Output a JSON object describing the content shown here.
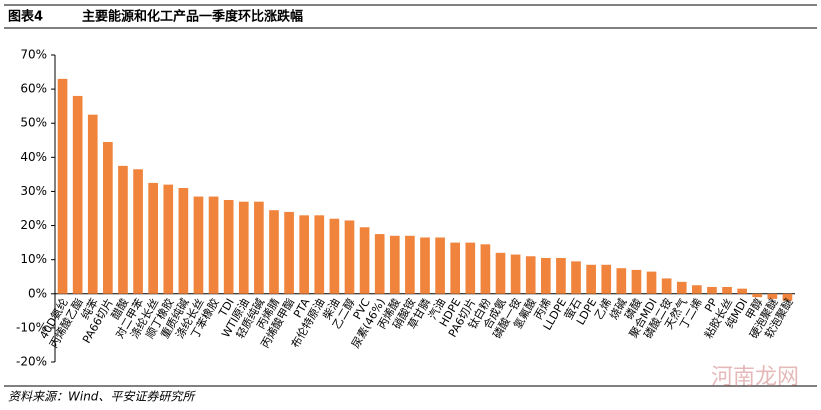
{
  "chart_data": {
    "type": "bar",
    "figure_label": "图表4",
    "title": "主要能源和化工产品一季度环比涨跌幅",
    "source": "资料来源：Wind、平安证券研究所",
    "watermark": "河南龙网",
    "color": "#f0843c",
    "categories": [
      "40D氨纶",
      "丙烯酸乙酯",
      "纯苯",
      "PA66切片",
      "醋酸",
      "对二甲苯",
      "涤纶长丝",
      "顺丁橡胶",
      "重质纯碱",
      "涤纶长丝",
      "丁苯橡胶",
      "TDI",
      "WTI原油",
      "轻质纯碱",
      "丙烯腈",
      "丙烯酸甲酯",
      "PTA",
      "布伦特原油",
      "柴油",
      "乙二醇",
      "PVC",
      "尿素(46%)",
      "丙烯酸",
      "硝酸铵",
      "草甘膦",
      "汽油",
      "HDPE",
      "PA6切片",
      "钛白粉",
      "合成氨",
      "磷酸一铵",
      "氢氟酸",
      "丙烯",
      "LLDPE",
      "萤石",
      "LDPE",
      "乙烯",
      "烧碱",
      "磷酸",
      "聚合MDI",
      "磷酸二铵",
      "天然气",
      "丁二烯",
      "PP",
      "粘胶长丝",
      "纯MDI",
      "甲醇",
      "硬泡聚醚",
      "软泡聚醚"
    ],
    "values": [
      63,
      58,
      52.5,
      44.5,
      37.5,
      36.5,
      32.5,
      32,
      31,
      28.5,
      28.5,
      27.5,
      27,
      27,
      24.5,
      24,
      23,
      23,
      22,
      21.5,
      19.5,
      17.5,
      17,
      17,
      16.5,
      16.5,
      15,
      15,
      14.5,
      12,
      11.5,
      11,
      10.5,
      10.5,
      9.5,
      8.5,
      8.5,
      7.5,
      7,
      6.5,
      4.5,
      3.5,
      2.5,
      2,
      2,
      1.5,
      -1,
      -1.5,
      -2
    ],
    "ylim": [
      -20,
      70
    ],
    "yticks": [
      {
        "value": -20,
        "label": "-20%"
      },
      {
        "value": -10,
        "label": "-10%"
      },
      {
        "value": 0,
        "label": "0%"
      },
      {
        "value": 10,
        "label": "10%"
      },
      {
        "value": 20,
        "label": "20%"
      },
      {
        "value": 30,
        "label": "30%"
      },
      {
        "value": 40,
        "label": "40%"
      },
      {
        "value": 50,
        "label": "50%"
      },
      {
        "value": 60,
        "label": "60%"
      },
      {
        "value": 70,
        "label": "70%"
      }
    ]
  }
}
